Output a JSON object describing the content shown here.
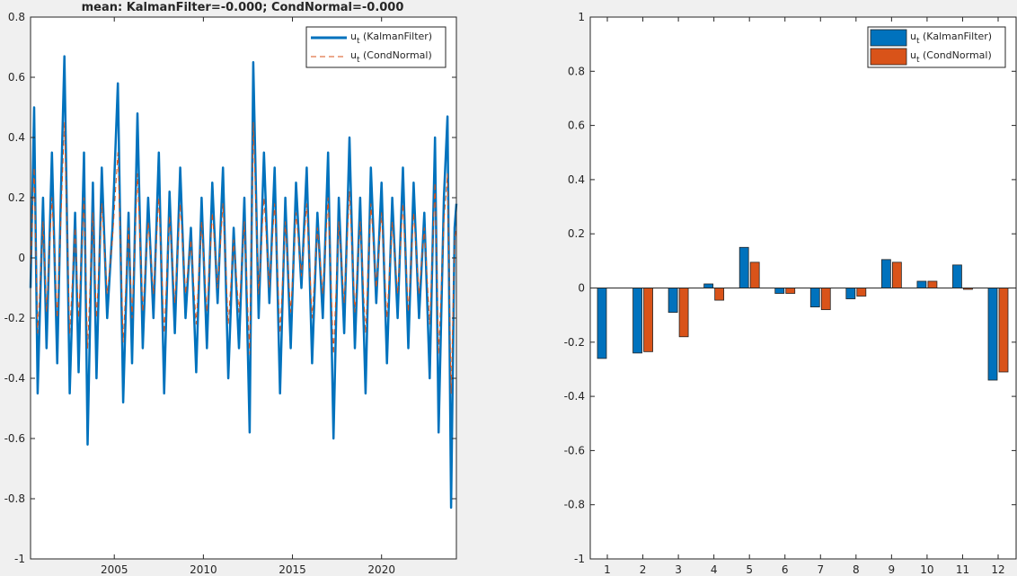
{
  "figure": {
    "background": "#f0f0f0"
  },
  "chart_data": [
    {
      "type": "line",
      "title": "mean: KalmanFilter=-0.000; CondNormal=-0.000",
      "xlabel": "",
      "ylabel": "",
      "xlim": [
        2000.3,
        2024.2
      ],
      "ylim": [
        -1,
        0.8
      ],
      "yticks": [
        -1,
        -0.8,
        -0.6,
        -0.4,
        -0.2,
        0,
        0.2,
        0.4,
        0.6,
        0.8
      ],
      "ytick_labels": [
        "-1",
        "-0.8",
        "-0.6",
        "-0.4",
        "-0.2",
        "0",
        "0.2",
        "0.4",
        "0.6",
        "0.8"
      ],
      "xticks": [
        2005,
        2010,
        2015,
        2020
      ],
      "xtick_labels": [
        "2005",
        "2010",
        "2015",
        "2020"
      ],
      "grid": false,
      "legend_position": "top-right",
      "series": [
        {
          "name": "u_t (KalmanFilter)",
          "legend_main": "u",
          "legend_sub": "t",
          "legend_rest": " (KalmanFilter)",
          "color": "#0072BD",
          "style": "solid",
          "x": [
            2000.3,
            2000.5,
            2000.7,
            2001.0,
            2001.2,
            2001.5,
            2001.8,
            2002.0,
            2002.2,
            2002.5,
            2002.8,
            2003.0,
            2003.3,
            2003.5,
            2003.8,
            2004.0,
            2004.3,
            2004.6,
            2004.9,
            2005.2,
            2005.5,
            2005.8,
            2006.0,
            2006.3,
            2006.6,
            2006.9,
            2007.2,
            2007.5,
            2007.8,
            2008.1,
            2008.4,
            2008.7,
            2009.0,
            2009.3,
            2009.6,
            2009.9,
            2010.2,
            2010.5,
            2010.8,
            2011.1,
            2011.4,
            2011.7,
            2012.0,
            2012.3,
            2012.6,
            2012.8,
            2013.1,
            2013.4,
            2013.7,
            2014.0,
            2014.3,
            2014.6,
            2014.9,
            2015.2,
            2015.5,
            2015.8,
            2016.1,
            2016.4,
            2016.7,
            2017.0,
            2017.3,
            2017.6,
            2017.9,
            2018.2,
            2018.5,
            2018.8,
            2019.1,
            2019.4,
            2019.7,
            2020.0,
            2020.3,
            2020.6,
            2020.9,
            2021.2,
            2021.5,
            2021.8,
            2022.1,
            2022.4,
            2022.7,
            2023.0,
            2023.2,
            2023.5,
            2023.7,
            2023.9,
            2024.1,
            2024.2
          ],
          "values": [
            -0.1,
            0.5,
            -0.45,
            0.2,
            -0.3,
            0.35,
            -0.35,
            0.2,
            0.67,
            -0.45,
            0.15,
            -0.38,
            0.35,
            -0.62,
            0.25,
            -0.4,
            0.3,
            -0.2,
            0.1,
            0.58,
            -0.48,
            0.15,
            -0.35,
            0.48,
            -0.3,
            0.2,
            -0.2,
            0.35,
            -0.45,
            0.22,
            -0.25,
            0.3,
            -0.2,
            0.1,
            -0.38,
            0.2,
            -0.3,
            0.25,
            -0.15,
            0.3,
            -0.4,
            0.1,
            -0.3,
            0.2,
            -0.58,
            0.65,
            -0.2,
            0.35,
            -0.15,
            0.3,
            -0.45,
            0.2,
            -0.3,
            0.25,
            -0.1,
            0.3,
            -0.35,
            0.15,
            -0.2,
            0.35,
            -0.6,
            0.2,
            -0.25,
            0.4,
            -0.3,
            0.2,
            -0.45,
            0.3,
            -0.15,
            0.25,
            -0.35,
            0.2,
            -0.2,
            0.3,
            -0.3,
            0.25,
            -0.2,
            0.15,
            -0.4,
            0.4,
            -0.58,
            0.2,
            0.47,
            -0.83,
            0.1,
            0.18
          ]
        },
        {
          "name": "u_t (CondNormal)",
          "legend_main": "u",
          "legend_sub": "t",
          "legend_rest": " (CondNormal)",
          "color": "#D95319",
          "style": "dashed",
          "x": [
            2000.3,
            2000.5,
            2000.7,
            2001.0,
            2001.2,
            2001.5,
            2001.8,
            2002.0,
            2002.2,
            2002.5,
            2002.8,
            2003.0,
            2003.3,
            2003.5,
            2003.8,
            2004.0,
            2004.3,
            2004.6,
            2004.9,
            2005.2,
            2005.5,
            2005.8,
            2006.0,
            2006.3,
            2006.6,
            2006.9,
            2007.2,
            2007.5,
            2007.8,
            2008.1,
            2008.4,
            2008.7,
            2009.0,
            2009.3,
            2009.6,
            2009.9,
            2010.2,
            2010.5,
            2010.8,
            2011.1,
            2011.4,
            2011.7,
            2012.0,
            2012.3,
            2012.6,
            2012.8,
            2013.1,
            2013.4,
            2013.7,
            2014.0,
            2014.3,
            2014.6,
            2014.9,
            2015.2,
            2015.5,
            2015.8,
            2016.1,
            2016.4,
            2016.7,
            2017.0,
            2017.3,
            2017.6,
            2017.9,
            2018.2,
            2018.5,
            2018.8,
            2019.1,
            2019.4,
            2019.7,
            2020.0,
            2020.3,
            2020.6,
            2020.9,
            2021.2,
            2021.5,
            2021.8,
            2022.1,
            2022.4,
            2022.7,
            2023.0,
            2023.2,
            2023.5,
            2023.7,
            2023.9,
            2024.1,
            2024.2
          ],
          "values": [
            -0.05,
            0.3,
            -0.25,
            0.12,
            -0.18,
            0.2,
            -0.2,
            0.12,
            0.45,
            -0.25,
            0.1,
            -0.2,
            0.2,
            -0.3,
            0.15,
            -0.2,
            0.18,
            -0.12,
            0.06,
            0.35,
            -0.28,
            0.1,
            -0.2,
            0.28,
            -0.18,
            0.12,
            -0.12,
            0.2,
            -0.25,
            0.14,
            -0.15,
            0.18,
            -0.12,
            0.06,
            -0.22,
            0.12,
            -0.18,
            0.15,
            -0.1,
            0.18,
            -0.22,
            0.06,
            -0.18,
            0.12,
            -0.32,
            0.45,
            -0.12,
            0.2,
            -0.1,
            0.18,
            -0.25,
            0.12,
            -0.18,
            0.15,
            -0.06,
            0.18,
            -0.2,
            0.1,
            -0.12,
            0.2,
            -0.32,
            0.12,
            -0.15,
            0.22,
            -0.18,
            0.12,
            -0.25,
            0.18,
            -0.1,
            0.15,
            -0.2,
            0.12,
            -0.12,
            0.18,
            -0.18,
            0.15,
            -0.12,
            0.1,
            -0.22,
            0.25,
            -0.32,
            0.12,
            0.28,
            -0.45,
            0.06,
            0.1
          ]
        }
      ]
    },
    {
      "type": "bar",
      "title": "",
      "xlabel": "",
      "ylabel": "",
      "categories": [
        "1",
        "2",
        "3",
        "4",
        "5",
        "6",
        "7",
        "8",
        "9",
        "10",
        "11",
        "12"
      ],
      "ylim": [
        -1,
        1
      ],
      "yticks": [
        -1,
        -0.8,
        -0.6,
        -0.4,
        -0.2,
        0,
        0.2,
        0.4,
        0.6,
        0.8,
        1
      ],
      "ytick_labels": [
        "-1",
        "-0.8",
        "-0.6",
        "-0.4",
        "-0.2",
        "0",
        "0.2",
        "0.4",
        "0.6",
        "0.8",
        "1"
      ],
      "grid": false,
      "legend_position": "top-right",
      "series": [
        {
          "name": "u_t (KalmanFilter)",
          "legend_main": "u",
          "legend_sub": "t",
          "legend_rest": " (KalmanFilter)",
          "color": "#0072BD",
          "values": [
            -0.26,
            -0.24,
            -0.09,
            0.015,
            0.15,
            -0.02,
            -0.07,
            -0.04,
            0.105,
            0.025,
            0.085,
            -0.34
          ]
        },
        {
          "name": "u_t (CondNormal)",
          "legend_main": "u",
          "legend_sub": "t",
          "legend_rest": " (CondNormal)",
          "color": "#D95319",
          "values": [
            0,
            -0.235,
            -0.18,
            -0.045,
            0.095,
            -0.02,
            -0.08,
            -0.03,
            0.095,
            0.025,
            -0.005,
            -0.31
          ]
        }
      ]
    }
  ]
}
